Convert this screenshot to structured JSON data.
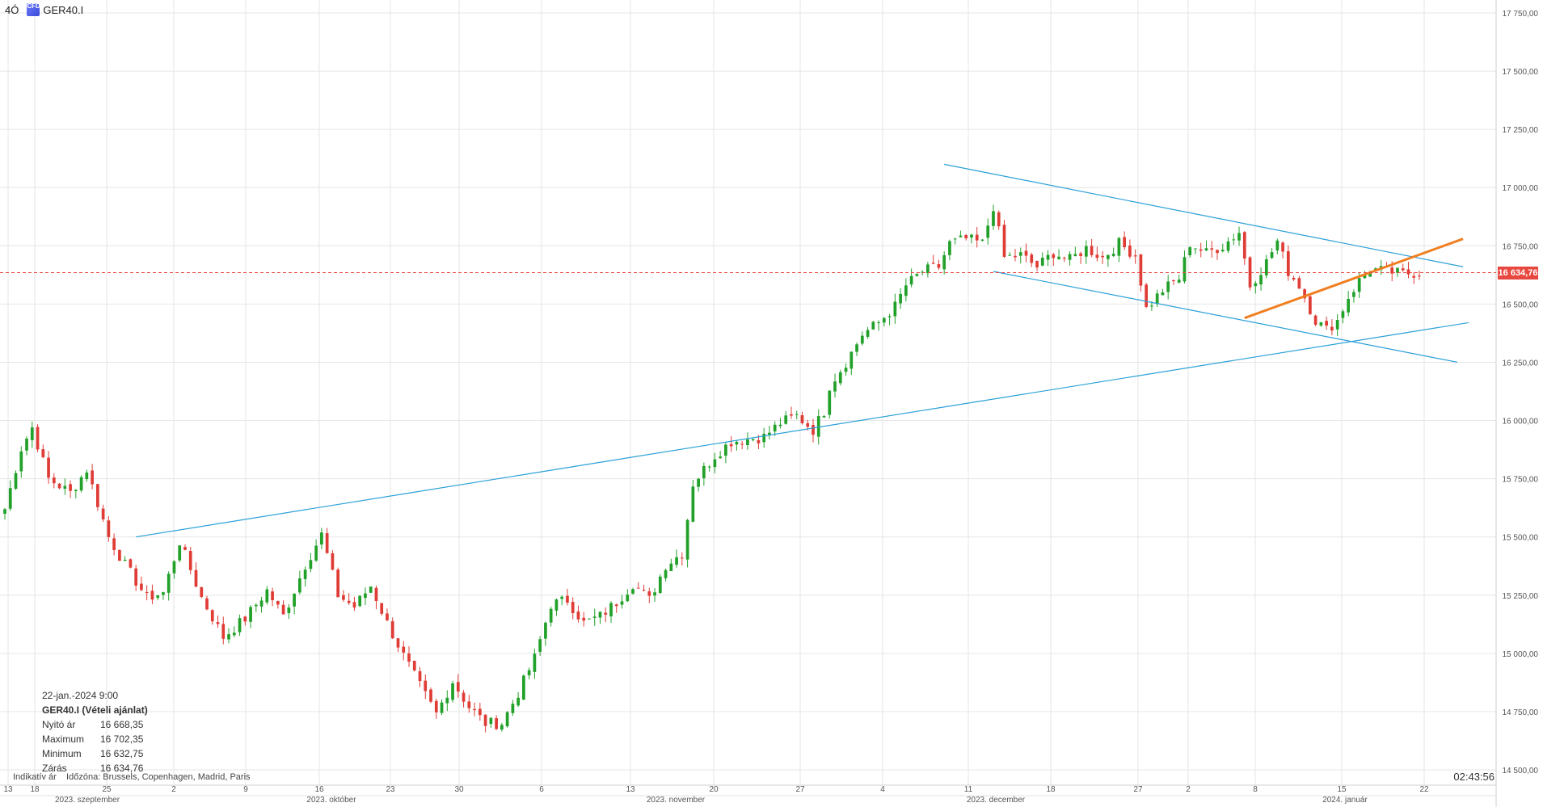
{
  "header": {
    "timeframe": "4Ó",
    "cfd_label": "CFD",
    "symbol": "GER40.I"
  },
  "chart_data": {
    "type": "candlestick",
    "instrument": "GER40.I",
    "current_price": 16634.76,
    "current_price_label": "16 634,76",
    "ylim": [
      14500,
      17750
    ],
    "y_ticks": [
      14500,
      14750,
      15000,
      15250,
      15500,
      15750,
      16000,
      16250,
      16500,
      16750,
      17000,
      17250,
      17500,
      17750
    ],
    "y_tick_labels": [
      "14 500,00",
      "14 750,00",
      "15 000,00",
      "15 250,00",
      "15 500,00",
      "15 750,00",
      "16 000,00",
      "16 250,00",
      "16 500,00",
      "16 750,00",
      "17 000,00",
      "17 250,00",
      "17 500,00",
      "17 750,00"
    ],
    "x_day_labels": [
      "13",
      "18",
      "25",
      "2",
      "9",
      "16",
      "23",
      "30",
      "6",
      "13",
      "20",
      "27",
      "4",
      "11",
      "18",
      "27",
      "2",
      "8",
      "15",
      "22"
    ],
    "x_month_labels": [
      "2023. szeptember",
      "2023. október",
      "2023. november",
      "2023. december",
      "2024. január"
    ],
    "bullish_color": "#22a12a",
    "bearish_color": "#e03c36",
    "trendline_color": "#2aa0d8",
    "support_color": "#f07f22",
    "current_line_color": "#e8473f",
    "price_anchors": [
      [
        0,
        15620
      ],
      [
        3,
        15880
      ],
      [
        5,
        15970
      ],
      [
        8,
        15750
      ],
      [
        12,
        15690
      ],
      [
        15,
        15790
      ],
      [
        19,
        15500
      ],
      [
        22,
        15380
      ],
      [
        26,
        15240
      ],
      [
        29,
        15260
      ],
      [
        32,
        15480
      ],
      [
        36,
        15240
      ],
      [
        40,
        15070
      ],
      [
        44,
        15150
      ],
      [
        48,
        15270
      ],
      [
        51,
        15160
      ],
      [
        55,
        15380
      ],
      [
        58,
        15510
      ],
      [
        61,
        15250
      ],
      [
        64,
        15200
      ],
      [
        67,
        15290
      ],
      [
        70,
        15130
      ],
      [
        73,
        14990
      ],
      [
        76,
        14860
      ],
      [
        79,
        14740
      ],
      [
        82,
        14880
      ],
      [
        85,
        14770
      ],
      [
        88,
        14700
      ],
      [
        91,
        14700
      ],
      [
        94,
        14830
      ],
      [
        97,
        14980
      ],
      [
        100,
        15210
      ],
      [
        103,
        15230
      ],
      [
        106,
        15130
      ],
      [
        109,
        15160
      ],
      [
        112,
        15220
      ],
      [
        115,
        15300
      ],
      [
        118,
        15230
      ],
      [
        121,
        15380
      ],
      [
        124,
        15430
      ],
      [
        126,
        15730
      ],
      [
        130,
        15850
      ],
      [
        133,
        15910
      ],
      [
        136,
        15920
      ],
      [
        139,
        15930
      ],
      [
        142,
        15990
      ],
      [
        145,
        16020
      ],
      [
        148,
        15960
      ],
      [
        150,
        16040
      ],
      [
        151,
        16150
      ],
      [
        154,
        16250
      ],
      [
        157,
        16370
      ],
      [
        160,
        16420
      ],
      [
        163,
        16490
      ],
      [
        165,
        16580
      ],
      [
        168,
        16640
      ],
      [
        171,
        16660
      ],
      [
        173,
        16760
      ],
      [
        176,
        16780
      ],
      [
        179,
        16760
      ],
      [
        181,
        16920
      ],
      [
        183,
        16700
      ],
      [
        186,
        16710
      ],
      [
        189,
        16660
      ],
      [
        192,
        16720
      ],
      [
        195,
        16690
      ],
      [
        198,
        16740
      ],
      [
        201,
        16700
      ],
      [
        204,
        16760
      ],
      [
        207,
        16710
      ],
      [
        209,
        16480
      ],
      [
        212,
        16560
      ],
      [
        215,
        16610
      ],
      [
        217,
        16760
      ],
      [
        220,
        16720
      ],
      [
        223,
        16750
      ],
      [
        226,
        16810
      ],
      [
        228,
        16580
      ],
      [
        231,
        16680
      ],
      [
        233,
        16770
      ],
      [
        235,
        16640
      ],
      [
        237,
        16580
      ],
      [
        240,
        16430
      ],
      [
        242,
        16390
      ],
      [
        244,
        16430
      ],
      [
        246,
        16530
      ],
      [
        248,
        16600
      ],
      [
        250,
        16650
      ],
      [
        253,
        16640
      ],
      [
        256,
        16630
      ],
      [
        258,
        16634
      ]
    ],
    "info_panel": {
      "datetime": "22-jan.-2024 9:00",
      "title": "GER40.I (Vételi ajánlat)",
      "open_label": "Nyitó ár",
      "open": "16 668,35",
      "high_label": "Maximum",
      "high": "16 702,35",
      "low_label": "Minimum",
      "low": "16 632,75",
      "close_label": "Zárás",
      "close": "16 634,76"
    }
  },
  "footer": {
    "indicative": "Indikatív ár",
    "timezone": "Időzóna: Brussels, Copenhagen, Madrid, Paris",
    "clock": "02:43:56"
  }
}
